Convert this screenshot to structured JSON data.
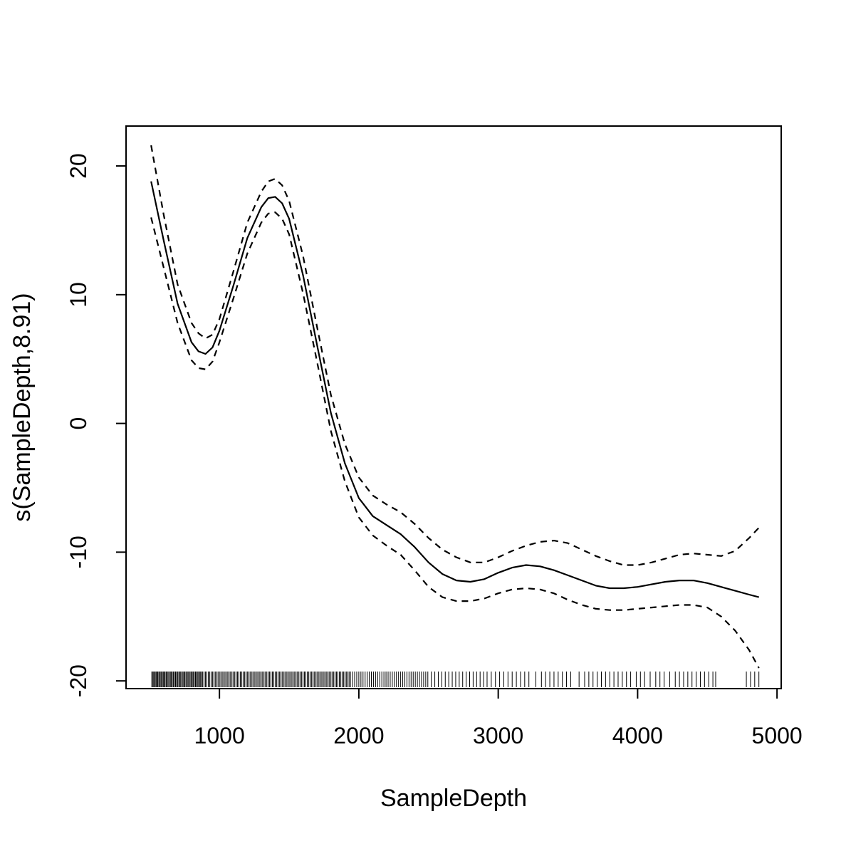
{
  "chart_data": {
    "type": "line",
    "title": "",
    "xlabel": "SampleDepth",
    "ylabel": "s(SampleDepth,8.91)",
    "xlim": [
      330,
      5030
    ],
    "ylim": [
      -20.6,
      23.1
    ],
    "x_ticks": [
      1000,
      2000,
      3000,
      4000,
      5000
    ],
    "y_ticks": [
      -20,
      -10,
      0,
      10,
      20
    ],
    "grid": false,
    "legend": "none",
    "colors": {
      "line": "#000000",
      "axis": "#000000",
      "background": "#ffffff"
    },
    "series": [
      {
        "style": "solid",
        "x": [
          510,
          600,
          700,
          800,
          850,
          900,
          950,
          1000,
          1100,
          1200,
          1300,
          1350,
          1400,
          1450,
          1500,
          1600,
          1700,
          1800,
          1900,
          2000,
          2100,
          2200,
          2300,
          2400,
          2500,
          2600,
          2700,
          2800,
          2900,
          3000,
          3100,
          3200,
          3300,
          3400,
          3500,
          3600,
          3700,
          3800,
          3900,
          4000,
          4100,
          4200,
          4300,
          4400,
          4500,
          4600,
          4700,
          4800,
          4870
        ],
        "y": [
          18.8,
          14.2,
          9.3,
          6.3,
          5.6,
          5.4,
          5.9,
          7.2,
          10.7,
          14.4,
          16.8,
          17.5,
          17.6,
          17.1,
          15.9,
          11.5,
          6.1,
          0.8,
          -3.1,
          -5.8,
          -7.2,
          -7.9,
          -8.6,
          -9.6,
          -10.8,
          -11.7,
          -12.2,
          -12.3,
          -12.1,
          -11.6,
          -11.2,
          -11.0,
          -11.1,
          -11.4,
          -11.8,
          -12.2,
          -12.6,
          -12.8,
          -12.8,
          -12.7,
          -12.5,
          -12.3,
          -12.2,
          -12.2,
          -12.4,
          -12.7,
          -13.0,
          -13.3,
          -13.5
        ]
      },
      {
        "style": "dashed",
        "x": [
          510,
          600,
          700,
          800,
          850,
          900,
          950,
          1000,
          1100,
          1200,
          1300,
          1350,
          1400,
          1450,
          1500,
          1600,
          1700,
          1800,
          1900,
          2000,
          2100,
          2200,
          2300,
          2400,
          2500,
          2600,
          2700,
          2800,
          2900,
          3000,
          3100,
          3200,
          3300,
          3400,
          3500,
          3600,
          3700,
          3800,
          3900,
          4000,
          4100,
          4200,
          4300,
          4400,
          4500,
          4600,
          4700,
          4800,
          4870
        ],
        "y": [
          21.6,
          16.2,
          10.8,
          7.8,
          7.0,
          6.6,
          6.9,
          8.1,
          11.8,
          15.6,
          18.0,
          18.8,
          19.0,
          18.5,
          17.3,
          13.0,
          7.5,
          2.2,
          -1.6,
          -4.2,
          -5.6,
          -6.3,
          -6.9,
          -7.8,
          -8.9,
          -9.8,
          -10.4,
          -10.8,
          -10.8,
          -10.4,
          -9.9,
          -9.5,
          -9.2,
          -9.1,
          -9.3,
          -9.8,
          -10.3,
          -10.7,
          -11.0,
          -11.0,
          -10.8,
          -10.5,
          -10.2,
          -10.1,
          -10.2,
          -10.3,
          -9.9,
          -8.9,
          -8.1
        ]
      },
      {
        "style": "dashed",
        "x": [
          510,
          600,
          700,
          800,
          850,
          900,
          950,
          1000,
          1100,
          1200,
          1300,
          1350,
          1400,
          1450,
          1500,
          1600,
          1700,
          1800,
          1900,
          2000,
          2100,
          2200,
          2300,
          2400,
          2500,
          2600,
          2700,
          2800,
          2900,
          3000,
          3100,
          3200,
          3300,
          3400,
          3500,
          3600,
          3700,
          3800,
          3900,
          4000,
          4100,
          4200,
          4300,
          4400,
          4500,
          4600,
          4700,
          4800,
          4870
        ],
        "y": [
          16.0,
          12.1,
          7.8,
          4.9,
          4.3,
          4.2,
          4.8,
          6.3,
          9.7,
          13.2,
          15.6,
          16.3,
          16.4,
          15.9,
          14.7,
          10.1,
          4.8,
          -0.6,
          -4.5,
          -7.3,
          -8.7,
          -9.5,
          -10.2,
          -11.4,
          -12.7,
          -13.5,
          -13.8,
          -13.8,
          -13.6,
          -13.2,
          -12.9,
          -12.8,
          -12.9,
          -13.2,
          -13.7,
          -14.1,
          -14.4,
          -14.5,
          -14.5,
          -14.4,
          -14.3,
          -14.2,
          -14.1,
          -14.1,
          -14.3,
          -15.0,
          -16.1,
          -17.6,
          -19.0
        ]
      }
    ],
    "rug": [
      515,
      520,
      528,
      535,
      540,
      548,
      555,
      560,
      568,
      575,
      582,
      590,
      597,
      603,
      610,
      618,
      625,
      632,
      640,
      648,
      655,
      662,
      670,
      678,
      685,
      692,
      700,
      708,
      715,
      722,
      730,
      738,
      745,
      752,
      760,
      768,
      775,
      782,
      790,
      798,
      805,
      812,
      820,
      828,
      835,
      842,
      850,
      858,
      865,
      872,
      880,
      890,
      900,
      910,
      920,
      930,
      940,
      950,
      960,
      970,
      980,
      990,
      1000,
      1010,
      1020,
      1030,
      1040,
      1050,
      1060,
      1070,
      1080,
      1090,
      1100,
      1110,
      1120,
      1130,
      1140,
      1150,
      1160,
      1170,
      1180,
      1190,
      1200,
      1210,
      1220,
      1230,
      1240,
      1250,
      1260,
      1270,
      1280,
      1290,
      1300,
      1310,
      1320,
      1330,
      1340,
      1350,
      1360,
      1370,
      1380,
      1390,
      1400,
      1410,
      1420,
      1430,
      1440,
      1450,
      1460,
      1470,
      1480,
      1490,
      1500,
      1510,
      1520,
      1530,
      1540,
      1550,
      1560,
      1570,
      1580,
      1590,
      1600,
      1610,
      1620,
      1630,
      1640,
      1650,
      1660,
      1670,
      1680,
      1690,
      1700,
      1710,
      1720,
      1730,
      1740,
      1750,
      1760,
      1770,
      1780,
      1790,
      1800,
      1810,
      1820,
      1830,
      1840,
      1850,
      1860,
      1870,
      1880,
      1890,
      1900,
      1910,
      1920,
      1930,
      1940,
      1955,
      1970,
      1985,
      2000,
      2015,
      2030,
      2045,
      2060,
      2075,
      2090,
      2105,
      2120,
      2135,
      2150,
      2165,
      2180,
      2195,
      2210,
      2225,
      2240,
      2255,
      2270,
      2285,
      2300,
      2315,
      2330,
      2345,
      2360,
      2375,
      2390,
      2405,
      2420,
      2435,
      2450,
      2465,
      2480,
      2495,
      2520,
      2545,
      2570,
      2595,
      2620,
      2645,
      2670,
      2695,
      2720,
      2745,
      2770,
      2795,
      2820,
      2845,
      2870,
      2895,
      2920,
      2950,
      2980,
      3010,
      3040,
      3070,
      3100,
      3130,
      3160,
      3190,
      3220,
      3270,
      3310,
      3340,
      3370,
      3400,
      3430,
      3460,
      3490,
      3520,
      3580,
      3620,
      3650,
      3680,
      3710,
      3740,
      3770,
      3800,
      3830,
      3860,
      3890,
      3920,
      3950,
      3990,
      4020,
      4050,
      4090,
      4130,
      4160,
      4190,
      4230,
      4270,
      4300,
      4330,
      4360,
      4390,
      4420,
      4450,
      4480,
      4510,
      4540,
      4560,
      4780,
      4810,
      4840,
      4870
    ]
  }
}
